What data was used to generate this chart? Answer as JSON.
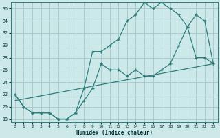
{
  "xlabel": "Humidex (Indice chaleur)",
  "background_color": "#cce8e8",
  "grid_color": "#aacccc",
  "line_color": "#2d7d7d",
  "xlim": [
    -0.5,
    23.5
  ],
  "ylim": [
    17.5,
    37.0
  ],
  "yticks": [
    18,
    20,
    22,
    24,
    26,
    28,
    30,
    32,
    34,
    36
  ],
  "xticks": [
    0,
    1,
    2,
    3,
    4,
    5,
    6,
    7,
    8,
    9,
    10,
    11,
    12,
    13,
    14,
    15,
    16,
    17,
    18,
    19,
    20,
    21,
    22,
    23
  ],
  "curve1_x": [
    0,
    1,
    2,
    3,
    4,
    5,
    6,
    7,
    8,
    9,
    10,
    11,
    12,
    13,
    14,
    15,
    16,
    17,
    18,
    19,
    20,
    21,
    22,
    23
  ],
  "curve1_y": [
    22,
    20,
    19,
    19,
    19,
    18,
    18,
    19,
    23,
    29,
    29,
    30,
    31,
    34,
    35,
    37,
    36,
    37,
    36,
    35,
    33,
    28,
    28,
    27
  ],
  "curve2_x": [
    0,
    1,
    2,
    3,
    4,
    5,
    6,
    7,
    8,
    9,
    10,
    11,
    12,
    13,
    14,
    15,
    16,
    17,
    18,
    19,
    20,
    21,
    22,
    23
  ],
  "curve2_y": [
    22,
    20,
    19,
    19,
    19,
    18,
    18,
    19,
    21,
    23,
    27,
    26,
    26,
    25,
    26,
    25,
    25,
    26,
    27,
    30,
    33,
    35,
    34,
    27
  ],
  "line3_x": [
    0,
    23
  ],
  "line3_y": [
    21,
    27
  ]
}
